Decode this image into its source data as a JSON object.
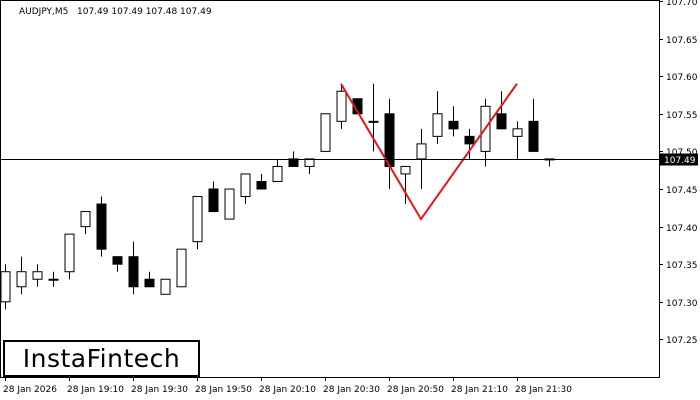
{
  "header": {
    "symbol": "AUDJPY,M5",
    "ohlc": "107.49 107.49 107.48 107.49"
  },
  "logo": {
    "text": "InstaFintech"
  },
  "current_price": {
    "label": "107.49",
    "value": 107.49
  },
  "colors": {
    "bull_fill": "#ffffff",
    "bear_fill": "#000000",
    "pattern_line": "#e8141b",
    "candle_outline": "#000000"
  },
  "chart_data": {
    "type": "candlestick",
    "y_ticks": [
      "107.70",
      "107.65",
      "107.60",
      "107.55",
      "107.50",
      "107.45",
      "107.40",
      "107.35",
      "107.30",
      "107.25"
    ],
    "y_tick_values": [
      107.7,
      107.65,
      107.6,
      107.55,
      107.5,
      107.45,
      107.4,
      107.35,
      107.3,
      107.25
    ],
    "ylim": [
      107.2,
      107.7
    ],
    "x_ticks": [
      "28 Jan 2026",
      "28 Jan 19:10",
      "28 Jan 19:30",
      "28 Jan 19:50",
      "28 Jan 20:10",
      "28 Jan 20:30",
      "28 Jan 20:50",
      "28 Jan 21:10",
      "28 Jan 21:30"
    ],
    "x_tick_index": [
      0,
      4,
      8,
      12,
      16,
      20,
      24,
      28,
      32
    ],
    "candles": [
      {
        "o": 107.3,
        "h": 107.35,
        "l": 107.29,
        "c": 107.34
      },
      {
        "o": 107.32,
        "h": 107.36,
        "l": 107.31,
        "c": 107.34
      },
      {
        "o": 107.33,
        "h": 107.35,
        "l": 107.32,
        "c": 107.34
      },
      {
        "o": 107.33,
        "h": 107.34,
        "l": 107.32,
        "c": 107.33
      },
      {
        "o": 107.34,
        "h": 107.39,
        "l": 107.33,
        "c": 107.39
      },
      {
        "o": 107.4,
        "h": 107.42,
        "l": 107.39,
        "c": 107.42
      },
      {
        "o": 107.43,
        "h": 107.44,
        "l": 107.36,
        "c": 107.37
      },
      {
        "o": 107.36,
        "h": 107.36,
        "l": 107.34,
        "c": 107.35
      },
      {
        "o": 107.36,
        "h": 107.38,
        "l": 107.31,
        "c": 107.32
      },
      {
        "o": 107.33,
        "h": 107.34,
        "l": 107.32,
        "c": 107.32
      },
      {
        "o": 107.31,
        "h": 107.33,
        "l": 107.31,
        "c": 107.33
      },
      {
        "o": 107.32,
        "h": 107.37,
        "l": 107.32,
        "c": 107.37
      },
      {
        "o": 107.38,
        "h": 107.44,
        "l": 107.37,
        "c": 107.44
      },
      {
        "o": 107.45,
        "h": 107.46,
        "l": 107.42,
        "c": 107.42
      },
      {
        "o": 107.41,
        "h": 107.45,
        "l": 107.41,
        "c": 107.45
      },
      {
        "o": 107.44,
        "h": 107.47,
        "l": 107.43,
        "c": 107.47
      },
      {
        "o": 107.46,
        "h": 107.47,
        "l": 107.45,
        "c": 107.45
      },
      {
        "o": 107.46,
        "h": 107.49,
        "l": 107.46,
        "c": 107.48
      },
      {
        "o": 107.49,
        "h": 107.5,
        "l": 107.48,
        "c": 107.48
      },
      {
        "o": 107.48,
        "h": 107.49,
        "l": 107.47,
        "c": 107.49
      },
      {
        "o": 107.5,
        "h": 107.55,
        "l": 107.5,
        "c": 107.55
      },
      {
        "o": 107.54,
        "h": 107.59,
        "l": 107.53,
        "c": 107.58
      },
      {
        "o": 107.57,
        "h": 107.57,
        "l": 107.55,
        "c": 107.55
      },
      {
        "o": 107.54,
        "h": 107.59,
        "l": 107.5,
        "c": 107.54
      },
      {
        "o": 107.55,
        "h": 107.57,
        "l": 107.45,
        "c": 107.48
      },
      {
        "o": 107.47,
        "h": 107.48,
        "l": 107.43,
        "c": 107.48
      },
      {
        "o": 107.49,
        "h": 107.53,
        "l": 107.45,
        "c": 107.51
      },
      {
        "o": 107.52,
        "h": 107.58,
        "l": 107.51,
        "c": 107.55
      },
      {
        "o": 107.54,
        "h": 107.56,
        "l": 107.52,
        "c": 107.53
      },
      {
        "o": 107.52,
        "h": 107.53,
        "l": 107.49,
        "c": 107.51
      },
      {
        "o": 107.5,
        "h": 107.57,
        "l": 107.48,
        "c": 107.56
      },
      {
        "o": 107.55,
        "h": 107.58,
        "l": 107.53,
        "c": 107.53
      },
      {
        "o": 107.52,
        "h": 107.54,
        "l": 107.49,
        "c": 107.53
      },
      {
        "o": 107.54,
        "h": 107.57,
        "l": 107.5,
        "c": 107.5
      },
      {
        "o": 107.49,
        "h": 107.49,
        "l": 107.48,
        "c": 107.49
      }
    ],
    "pattern_line": [
      {
        "i": 21,
        "y": 107.59
      },
      {
        "i": 26,
        "y": 107.41
      },
      {
        "i": 32,
        "y": 107.59
      }
    ],
    "grid": false
  }
}
